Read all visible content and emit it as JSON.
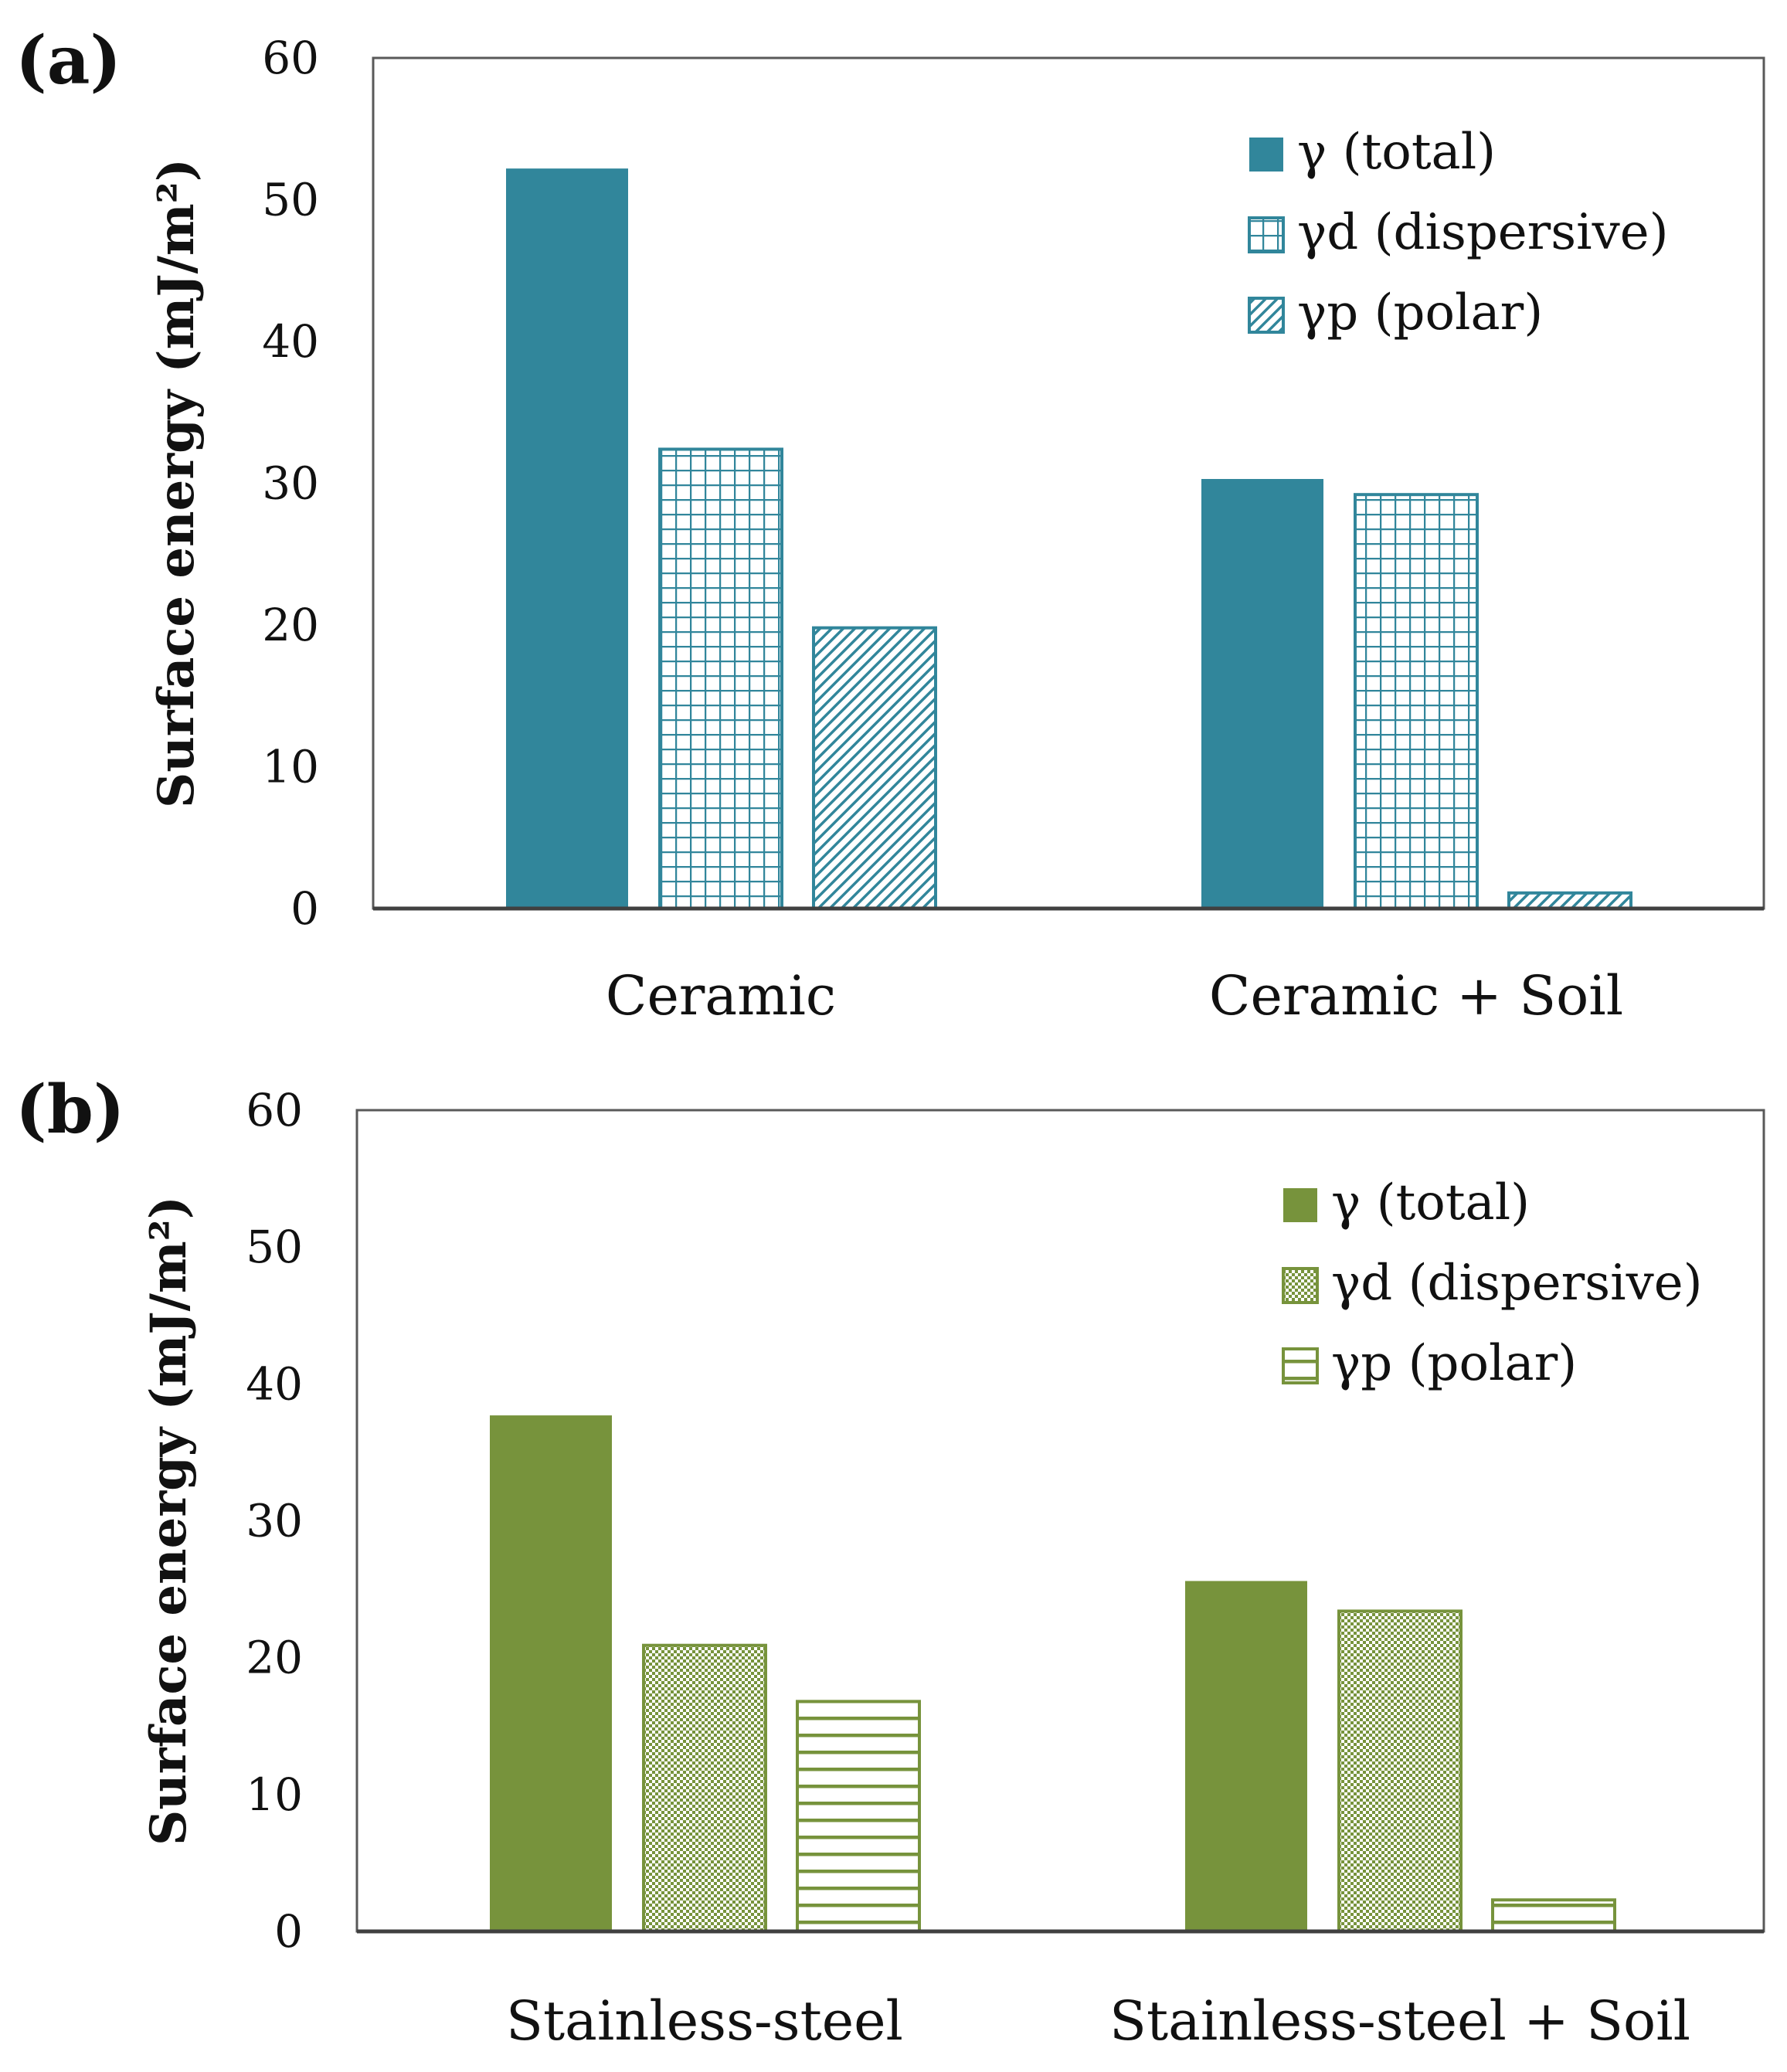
{
  "chart_data": [
    {
      "type": "bar",
      "panel_label": "(a)",
      "ylabel": "Surface energy (mJ/m²)",
      "ylim": [
        0,
        60
      ],
      "yticks": [
        "0",
        "10",
        "20",
        "30",
        "40",
        "50",
        "60"
      ],
      "categories": [
        "Ceramic",
        "Ceramic + Soil"
      ],
      "color": "#31869B",
      "legend_position": "top-right",
      "series": [
        {
          "name": "γ (total)",
          "values": [
            52.2,
            30.3
          ],
          "pattern": "solid"
        },
        {
          "name": "γd (dispersive)",
          "values": [
            32.4,
            29.2
          ],
          "pattern": "grid"
        },
        {
          "name": "γp (polar)",
          "values": [
            19.8,
            1.1
          ],
          "pattern": "diagonal"
        }
      ]
    },
    {
      "type": "bar",
      "panel_label": "(b)",
      "ylabel": "Surface energy (mJ/m²)",
      "ylim": [
        0,
        60
      ],
      "yticks": [
        "0",
        "10",
        "20",
        "30",
        "40",
        "50",
        "60"
      ],
      "categories": [
        "Stainless-steel",
        "Stainless-steel + Soil"
      ],
      "color": "#77933C",
      "legend_position": "top-right",
      "series": [
        {
          "name": "γ (total)",
          "values": [
            37.7,
            25.6
          ],
          "pattern": "solid"
        },
        {
          "name": "γd (dispersive)",
          "values": [
            20.9,
            23.4
          ],
          "pattern": "checker"
        },
        {
          "name": "γp (polar)",
          "values": [
            16.8,
            2.3
          ],
          "pattern": "horizontal"
        }
      ]
    }
  ]
}
